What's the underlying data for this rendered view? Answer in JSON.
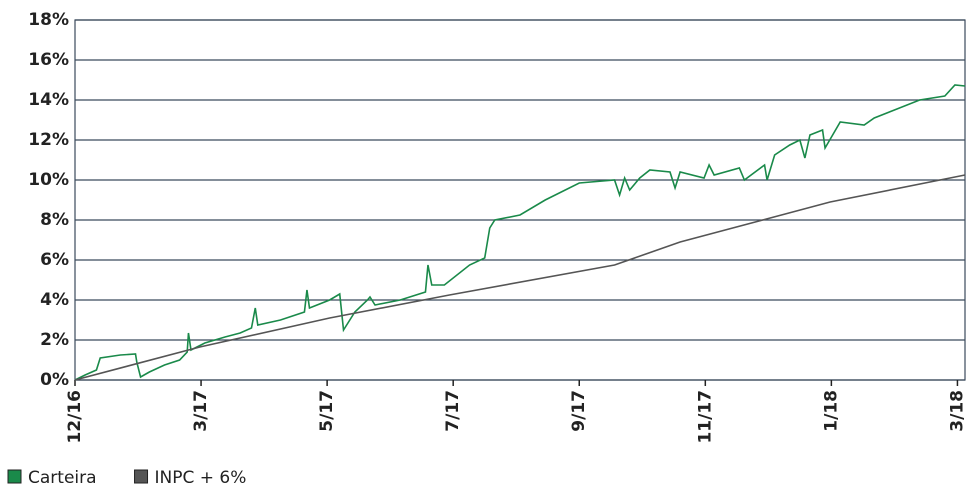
{
  "chart_data": {
    "type": "line",
    "xlim": [
      0,
      7.06
    ],
    "xticks": [
      {
        "value": 0,
        "label": "12/16"
      },
      {
        "value": 1,
        "label": "3/17"
      },
      {
        "value": 2,
        "label": "5/17"
      },
      {
        "value": 3,
        "label": "7/17"
      },
      {
        "value": 4,
        "label": "9/17"
      },
      {
        "value": 5,
        "label": "11/17"
      },
      {
        "value": 6,
        "label": "1/18"
      },
      {
        "value": 7,
        "label": "3/18"
      }
    ],
    "ylim": [
      0,
      18
    ],
    "yticks": [
      {
        "value": 0,
        "label": "0%"
      },
      {
        "value": 2,
        "label": "2%"
      },
      {
        "value": 4,
        "label": "4%"
      },
      {
        "value": 6,
        "label": "6%"
      },
      {
        "value": 8,
        "label": "8%"
      },
      {
        "value": 10,
        "label": "10%"
      },
      {
        "value": 12,
        "label": "12%"
      },
      {
        "value": 14,
        "label": "14%"
      },
      {
        "value": 16,
        "label": "16%"
      },
      {
        "value": 18,
        "label": "18%"
      }
    ],
    "grid": true,
    "series": [
      {
        "name": "Carteira",
        "color": "#1a8a4a",
        "x": [
          0,
          0.08,
          0.17,
          0.2,
          0.36,
          0.48,
          0.49,
          0.52,
          0.59,
          0.71,
          0.83,
          0.89,
          0.9,
          0.92,
          1.03,
          1.19,
          1.31,
          1.4,
          1.43,
          1.45,
          1.63,
          1.82,
          1.84,
          1.86,
          2.02,
          2.1,
          2.13,
          2.22,
          2.32,
          2.34,
          2.38,
          2.58,
          2.78,
          2.8,
          2.83,
          2.93,
          3.13,
          3.25,
          3.29,
          3.33,
          3.53,
          3.73,
          4.0,
          4.28,
          4.32,
          4.36,
          4.4,
          4.48,
          4.56,
          4.72,
          4.76,
          4.8,
          4.99,
          5.03,
          5.07,
          5.27,
          5.31,
          5.47,
          5.49,
          5.55,
          5.67,
          5.75,
          5.79,
          5.83,
          5.93,
          5.95,
          6.07,
          6.26,
          6.34,
          6.5,
          6.7,
          6.9,
          6.98,
          7.06
        ],
        "values": [
          0,
          0.25,
          0.5,
          1.1,
          1.25,
          1.3,
          0.9,
          0.15,
          0.4,
          0.75,
          1.0,
          1.4,
          2.35,
          1.5,
          1.85,
          2.15,
          2.35,
          2.6,
          3.6,
          2.75,
          3.0,
          3.4,
          4.5,
          3.6,
          4.0,
          4.3,
          2.5,
          3.4,
          4.0,
          4.15,
          3.75,
          4.0,
          4.4,
          5.75,
          4.75,
          4.75,
          5.75,
          6.1,
          7.6,
          8.0,
          8.25,
          9.0,
          9.85,
          10.0,
          9.25,
          10.1,
          9.5,
          10.1,
          10.5,
          10.4,
          9.6,
          10.4,
          10.1,
          10.75,
          10.25,
          10.6,
          10.0,
          10.75,
          10.0,
          11.25,
          11.75,
          12.0,
          11.1,
          12.25,
          12.5,
          11.6,
          12.9,
          12.75,
          13.1,
          13.5,
          14.0,
          14.2,
          14.75,
          14.7
        ]
      },
      {
        "name": "INPC + 6%",
        "color": "#555555",
        "x": [
          0,
          0.99,
          2.02,
          2.97,
          4.28,
          4.8,
          5.99,
          7.06
        ],
        "values": [
          0,
          1.65,
          3.1,
          4.25,
          5.75,
          6.9,
          8.9,
          10.25
        ]
      }
    ]
  }
}
